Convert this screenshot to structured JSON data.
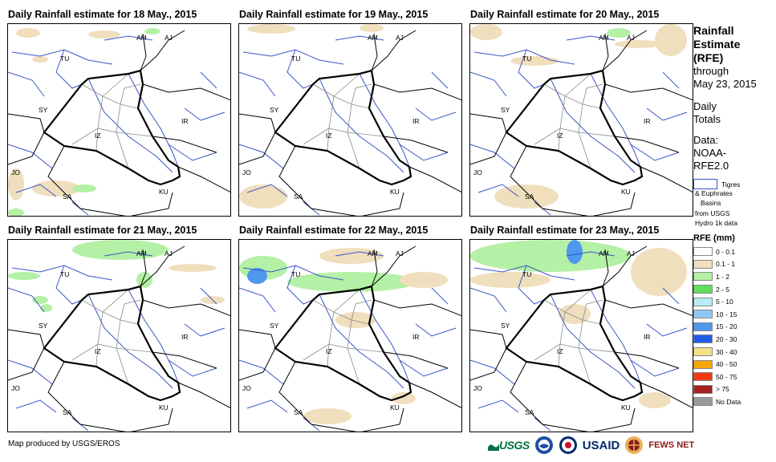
{
  "panels": [
    {
      "title": "Daily Rainfall estimate for 18 May., 2015"
    },
    {
      "title": "Daily Rainfall estimate for 19 May., 2015"
    },
    {
      "title": "Daily Rainfall estimate for 20 May., 2015"
    },
    {
      "title": "Daily Rainfall estimate for 21 May., 2015"
    },
    {
      "title": "Daily Rainfall estimate for 22 May., 2015"
    },
    {
      "title": "Daily Rainfall estimate for 23 May., 2015"
    }
  ],
  "country_labels": [
    "AM",
    "AJ",
    "TU",
    "SY",
    "IZ",
    "IR",
    "JO",
    "SA",
    "KU"
  ],
  "sidebar": {
    "heading_1": "Rainfall",
    "heading_2": "Estimate",
    "heading_3": "(RFE)",
    "through": "through",
    "date": "May 23, 2015",
    "daily": "Daily",
    "totals": "Totals",
    "data_label": "Data:",
    "data_source_1": "NOAA-",
    "data_source_2": "RFE2.0",
    "basin_label_1": "Tigres",
    "basin_label_2": "& Euphrates",
    "basin_label_3": "Basins",
    "basin_label_4": "from USGS",
    "basin_label_5": "Hydro 1k data",
    "legend_title": "RFE (mm)"
  },
  "legend": [
    {
      "label": "0 - 0.1",
      "color": "#ffffff"
    },
    {
      "label": "0.1 - 1",
      "color": "#f0dfbd"
    },
    {
      "label": "1 - 2",
      "color": "#b4f0a5"
    },
    {
      "label": "2 - 5",
      "color": "#5fe05a"
    },
    {
      "label": "5 - 10",
      "color": "#b8ecf5"
    },
    {
      "label": "10 - 15",
      "color": "#8ec8f2"
    },
    {
      "label": "15 - 20",
      "color": "#4f98ee"
    },
    {
      "label": "20 - 30",
      "color": "#1f5ce6"
    },
    {
      "label": "30 - 40",
      "color": "#f5e08a"
    },
    {
      "label": "40 - 50",
      "color": "#f5a700"
    },
    {
      "label": "50 - 75",
      "color": "#f23a10"
    },
    {
      "label": "> 75",
      "color": "#a52020"
    },
    {
      "label": "No Data",
      "color": "#9a9a9a"
    }
  ],
  "footer": "Map produced by USGS/EROS",
  "logos": {
    "usgs": "USGS",
    "usaid": "USAID",
    "fews": "FEWS NET"
  },
  "colors": {
    "border": "#000000",
    "river": "#3a55c8",
    "province": "#8a8a8a"
  }
}
